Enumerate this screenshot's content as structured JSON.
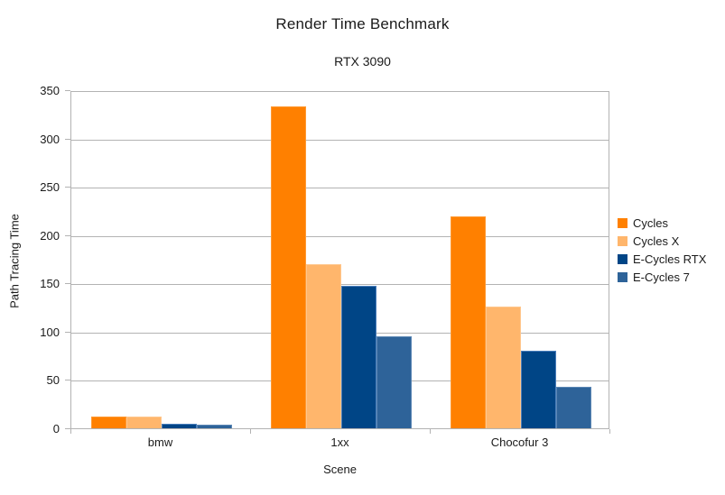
{
  "chart_data": {
    "type": "bar",
    "title": "Render Time Benchmark",
    "subtitle": "RTX 3090",
    "xlabel": "Scene",
    "ylabel": "Path Tracing Time",
    "categories": [
      "bmw",
      "1xx",
      "Chocofur 3"
    ],
    "series": [
      {
        "name": "Cycles",
        "color": "#FF8000",
        "border_color": "#FF9A33",
        "values": [
          12,
          333,
          219
        ]
      },
      {
        "name": "Cycles X",
        "color": "#FFB66C",
        "border_color": "#FFC78E",
        "values": [
          12,
          170,
          126
        ]
      },
      {
        "name": "E-Cycles RTX",
        "color": "#004586",
        "border_color": "#4A7EBB",
        "values": [
          5,
          147,
          80
        ]
      },
      {
        "name": "E-Cycles 7",
        "color": "#2E6399",
        "border_color": "#5C87B5",
        "values": [
          4,
          95,
          43
        ]
      }
    ],
    "ylim": [
      0,
      350
    ],
    "ytick_step": 50,
    "yticks": [
      0,
      50,
      100,
      150,
      200,
      250,
      300,
      350
    ],
    "grid": "horizontal",
    "gridline_color": "#b3b3b3",
    "axis_color": "#b3b3b3",
    "text_color": "#1a1a1a",
    "background_color": "#ffffff",
    "legend_position": "right"
  }
}
